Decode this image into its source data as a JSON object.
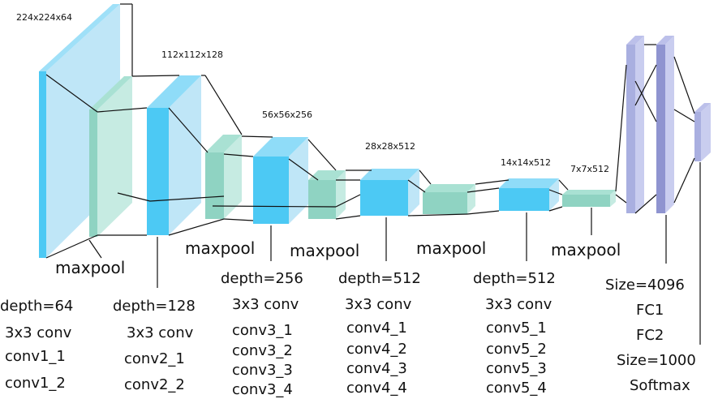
{
  "dimensions": {
    "d1": "224x224x64",
    "d2": "112x112x128",
    "d3": "56x56x256",
    "d4": "28x28x512",
    "d5": "14x14x512",
    "d6": "7x7x512"
  },
  "pool_labels": [
    "maxpool",
    "maxpool",
    "maxpool",
    "maxpool",
    "maxpool"
  ],
  "block1": [
    "depth=64",
    "3x3 conv",
    "conv1_1",
    "conv1_2"
  ],
  "block2": [
    "depth=128",
    "3x3 conv",
    "conv2_1",
    "conv2_2"
  ],
  "block3": [
    "depth=256",
    "3x3 conv",
    "conv3_1",
    "conv3_2",
    "conv3_3",
    "conv3_4"
  ],
  "block4": [
    "depth=512",
    "3x3 conv",
    "conv4_1",
    "conv4_2",
    "conv4_3",
    "conv4_4"
  ],
  "block5": [
    "depth=512",
    "3x3 conv",
    "conv5_1",
    "conv5_2",
    "conv5_3",
    "conv5_4"
  ],
  "fc": [
    "Size=4096",
    "FC1",
    "FC2",
    "Size=1000",
    "Softmax"
  ],
  "colors": {
    "conv": "#4cc9f4",
    "conv_front": "#bfe6f7",
    "conv_top": "#8fdcf8",
    "pool": "#8fd3c2",
    "pool_front": "#c6ebe2",
    "fc": "#a9afe0",
    "fc_dark": "#8f94d0",
    "line": "#111111"
  }
}
